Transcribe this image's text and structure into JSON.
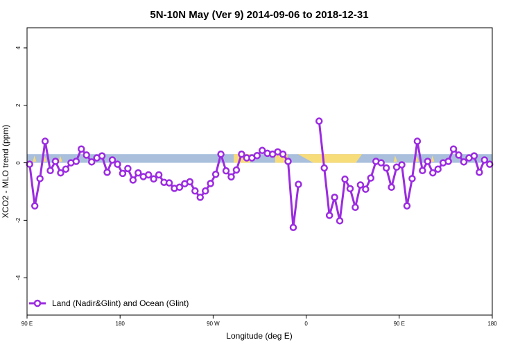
{
  "chart_data": {
    "type": "line",
    "title": "5N-10N May (Ver 9)   2014-09-06 to 2018-12-31",
    "xlabel": "Longitude (deg E)",
    "ylabel": "XCO2 - MLO trend (ppm)",
    "x_ticks": [
      {
        "value": 90,
        "label": "90 E"
      },
      {
        "value": 180,
        "label": "180"
      },
      {
        "value": 270,
        "label": "90 W"
      },
      {
        "value": 360,
        "label": "0"
      },
      {
        "value": 450,
        "label": "90 E"
      },
      {
        "value": 540,
        "label": "180"
      }
    ],
    "y_ticks": [
      -4,
      -2,
      0,
      2,
      4
    ],
    "xlim": [
      90,
      540
    ],
    "ylim": [
      -5.3,
      4.7
    ],
    "legend": {
      "label": "Land (Nadir&Glint) and Ocean (Glint)",
      "position": "bottom-left"
    },
    "colors": {
      "series": "#9b2be0",
      "band_blue": "#a9bfdc",
      "band_yellow": "#f7dc7a"
    },
    "background_band": {
      "y_range": [
        0,
        0.3
      ]
    },
    "series": [
      {
        "name": "Land (Nadir&Glint) and Ocean (Glint)",
        "x": [
          92.5,
          97.5,
          102.5,
          107.5,
          112.5,
          117.5,
          122.5,
          127.5,
          132.5,
          137.5,
          142.5,
          147.5,
          152.5,
          157.5,
          162.5,
          167.5,
          172.5,
          177.5,
          182.5,
          187.5,
          192.5,
          197.5,
          202.5,
          207.5,
          212.5,
          217.5,
          222.5,
          227.5,
          232.5,
          237.5,
          242.5,
          247.5,
          252.5,
          257.5,
          262.5,
          267.5,
          272.5,
          277.5,
          282.5,
          287.5,
          292.5,
          297.5,
          302.5,
          307.5,
          312.5,
          317.5,
          322.5,
          327.5,
          332.5,
          337.5,
          342.5,
          347.5,
          352.5,
          357.5,
          372.5,
          377.5,
          382.5,
          387.5,
          392.5,
          397.5,
          402.5,
          407.5,
          412.5,
          417.5,
          422.5,
          427.5,
          432.5,
          437.5,
          442.5,
          447.5,
          452.5,
          457.5,
          462.5,
          467.5,
          472.5,
          477.5,
          482.5,
          487.5,
          492.5,
          497.5,
          502.5,
          507.5,
          512.5,
          517.5,
          522.5,
          527.5,
          532.5,
          537.5
        ],
        "y": [
          -0.05,
          -1.5,
          -0.55,
          0.75,
          -0.27,
          0.05,
          -0.35,
          -0.22,
          0.0,
          0.05,
          0.48,
          0.27,
          0.03,
          0.17,
          0.24,
          -0.33,
          0.1,
          -0.05,
          -0.37,
          -0.2,
          -0.6,
          -0.35,
          -0.48,
          -0.42,
          -0.56,
          -0.42,
          -0.68,
          -0.7,
          -0.89,
          -0.85,
          -0.73,
          -0.66,
          -0.98,
          -1.2,
          -0.98,
          -0.72,
          -0.4,
          0.3,
          -0.28,
          -0.49,
          -0.25,
          0.3,
          0.17,
          0.17,
          0.25,
          0.43,
          0.33,
          0.3,
          0.38,
          0.3,
          0.05,
          -2.25,
          -0.75,
          null,
          1.45,
          -0.18,
          -1.83,
          -1.2,
          -2.02,
          -0.57,
          -0.9,
          -1.55,
          -0.77,
          -0.92,
          -0.53,
          0.05,
          0.0,
          -0.18,
          -0.85,
          -0.15,
          -0.07,
          -1.5,
          -0.55,
          0.75,
          -0.27,
          0.05,
          -0.35,
          -0.22,
          0.0,
          0.05,
          0.48,
          0.27,
          0.03,
          0.17,
          0.24,
          -0.33,
          0.1,
          -0.05
        ]
      }
    ]
  }
}
